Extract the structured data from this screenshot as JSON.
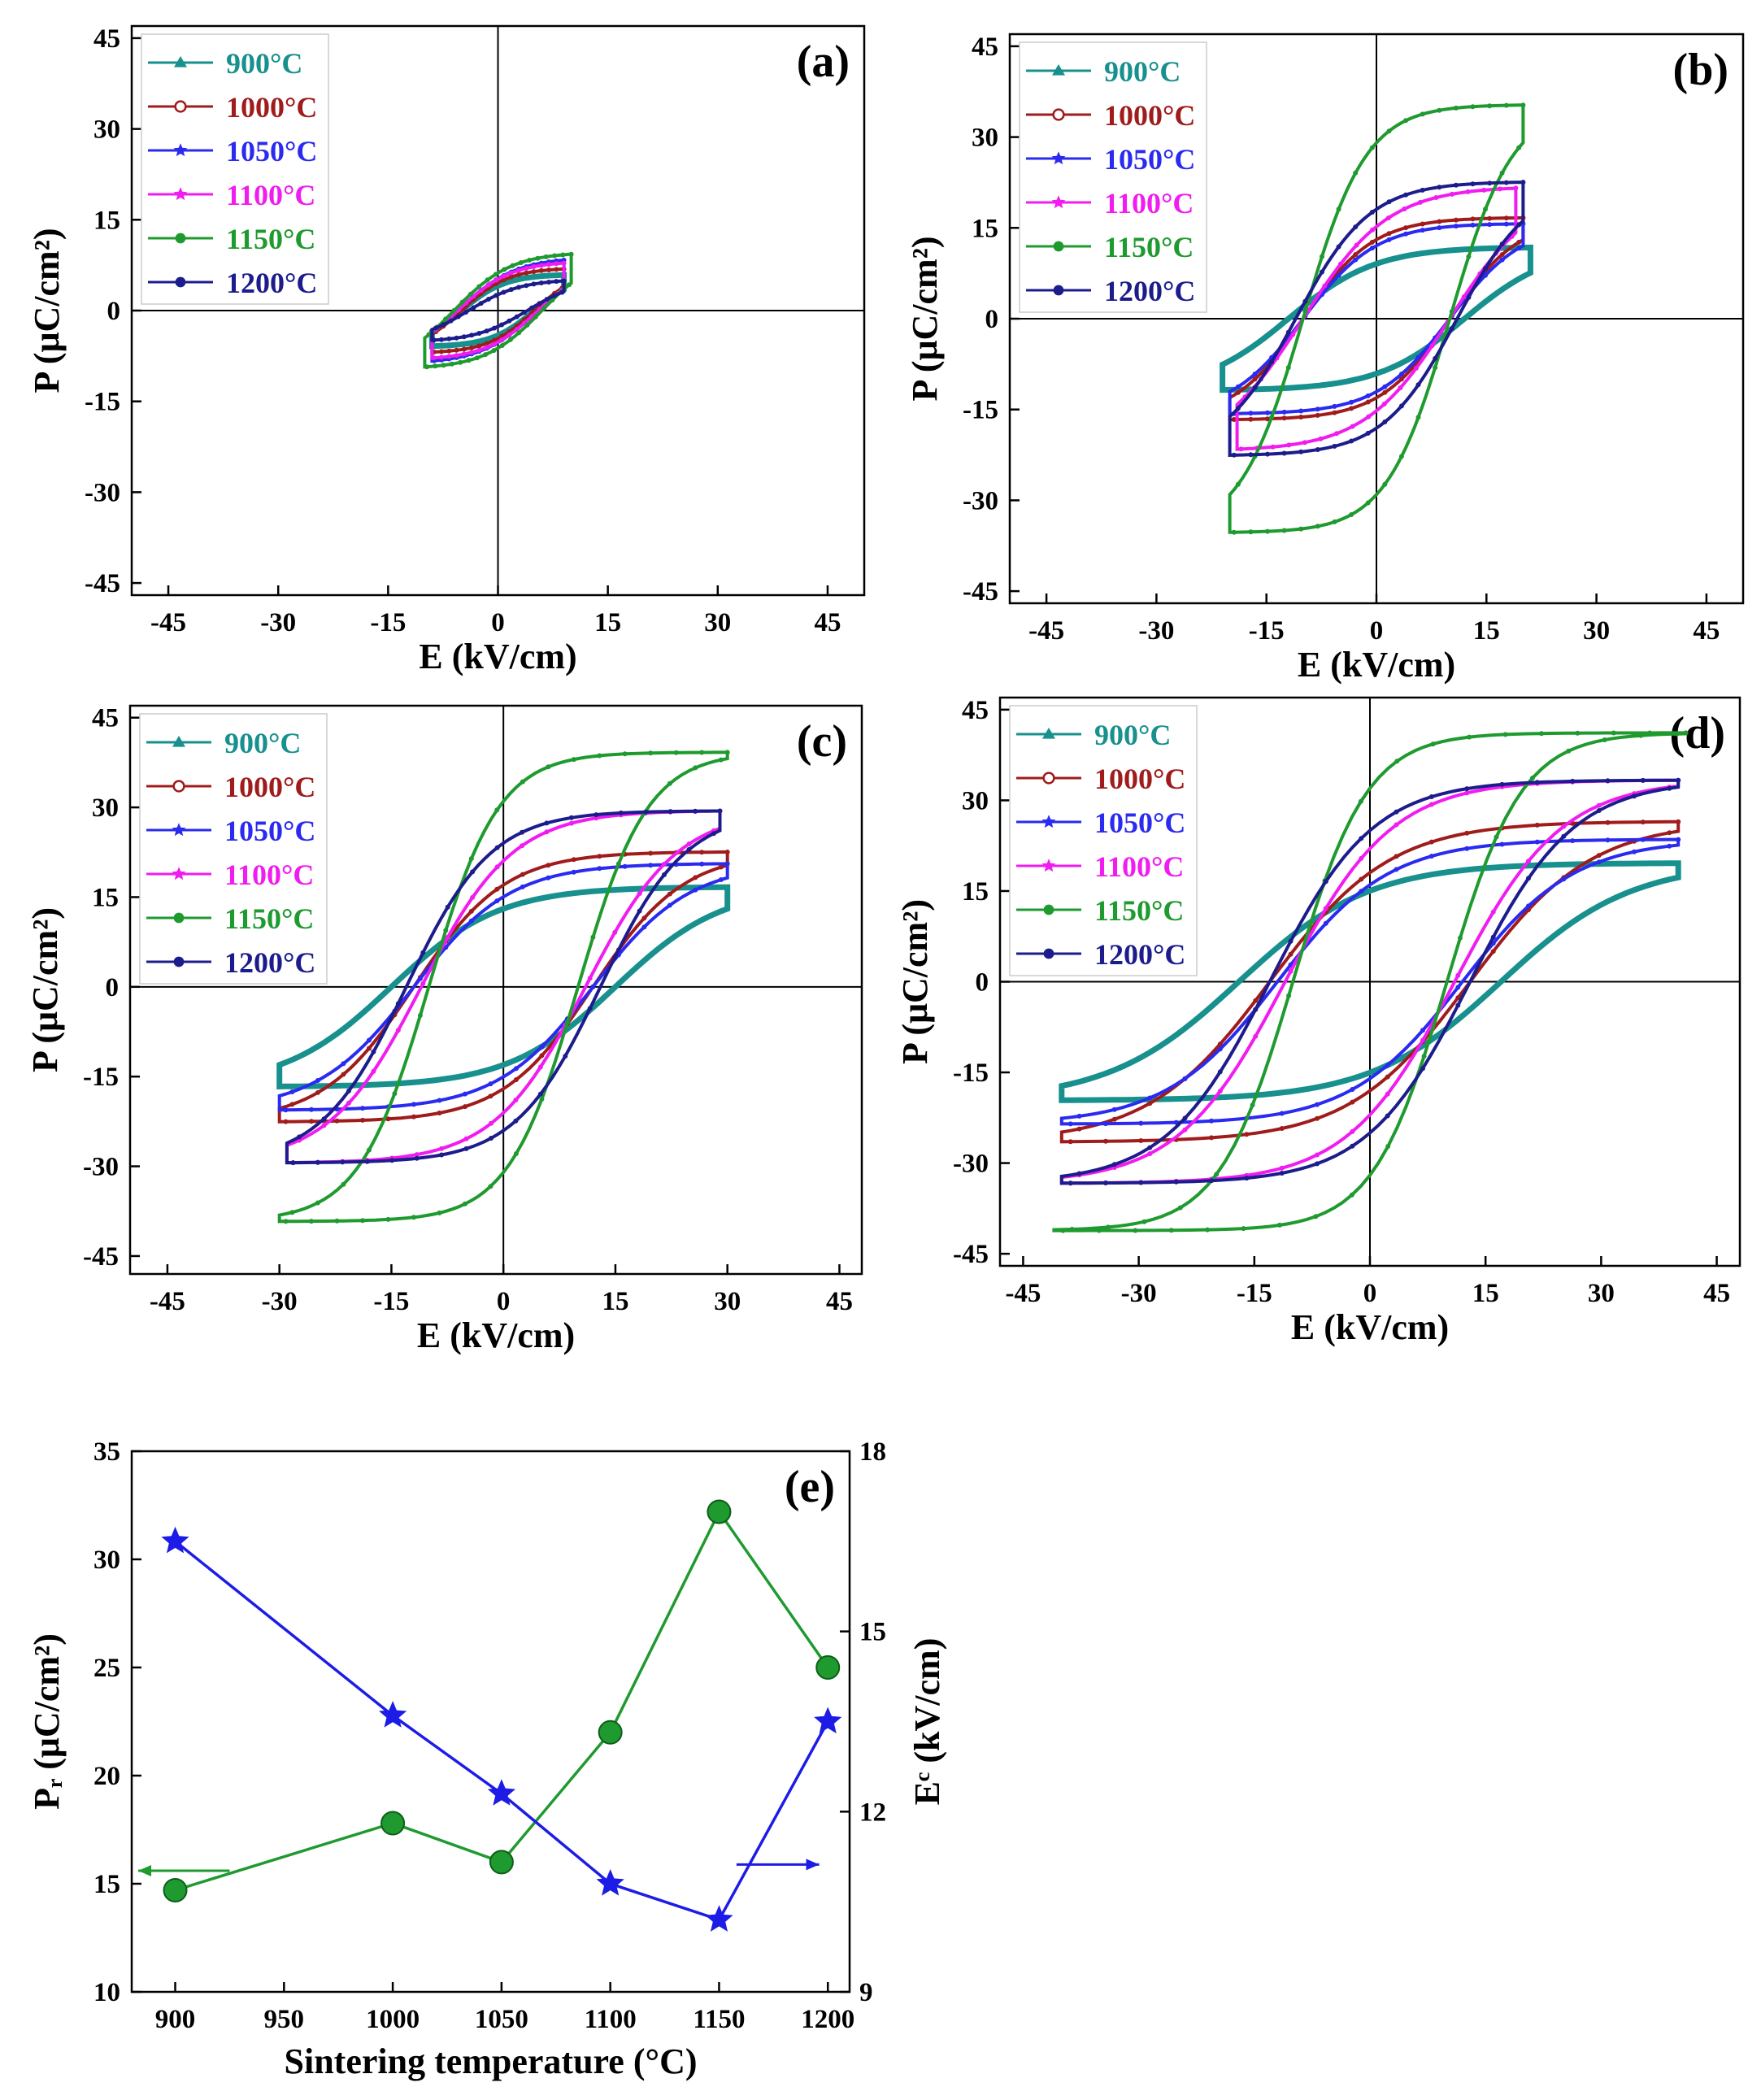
{
  "chart_data": [
    {
      "panel": "(a)",
      "type": "line",
      "xlabel": "E (kV/cm)",
      "ylabel": "P (μC/cm²)",
      "xlim": [
        -50,
        50
      ],
      "ylim": [
        -47,
        47
      ],
      "xticks": [
        "-45",
        "-30",
        "-15",
        "0",
        "15",
        "30",
        "45"
      ],
      "yticks": [
        "45",
        "30",
        "15",
        "0",
        "-15",
        "-30",
        "-45"
      ],
      "legend": "top-left",
      "series": [
        {
          "name": "900°C",
          "color": "#17908e",
          "marker": "triangle",
          "emax": 9,
          "pmax": 6,
          "pr": 4,
          "ec": 5
        },
        {
          "name": "1000°C",
          "color": "#a01c1c",
          "marker": "circle-open",
          "emax": 9,
          "pmax": 7,
          "pr": 4.5,
          "ec": 5
        },
        {
          "name": "1050°C",
          "color": "#2a2af0",
          "marker": "star",
          "emax": 9,
          "pmax": 8.5,
          "pr": 5,
          "ec": 5.5
        },
        {
          "name": "1100°C",
          "color": "#f01cf0",
          "marker": "star",
          "emax": 9,
          "pmax": 8,
          "pr": 5,
          "ec": 5.5
        },
        {
          "name": "1150°C",
          "color": "#1f9a2f",
          "marker": "circle",
          "emax": 10,
          "pmax": 9.5,
          "pr": 6,
          "ec": 6
        },
        {
          "name": "1200°C",
          "color": "#1c1c8c",
          "marker": "circle",
          "emax": 9,
          "pmax": 5,
          "pr": 2.5,
          "ec": 4
        }
      ]
    },
    {
      "panel": "(b)",
      "type": "line",
      "xlabel": "E (kV/cm)",
      "ylabel": "P (μC/cm²)",
      "xlim": [
        -50,
        50
      ],
      "ylim": [
        -47,
        47
      ],
      "xticks": [
        "-45",
        "-30",
        "-15",
        "0",
        "15",
        "30",
        "45"
      ],
      "yticks": [
        "45",
        "30",
        "15",
        "0",
        "-15",
        "-30",
        "-45"
      ],
      "legend": "top-left",
      "series": [
        {
          "name": "900°C",
          "color": "#17908e",
          "marker": "triangle",
          "emax": 21,
          "pmax": 12,
          "pr": 9,
          "ec": 12
        },
        {
          "name": "1000°C",
          "color": "#a01c1c",
          "marker": "circle-open",
          "emax": 20,
          "pmax": 17,
          "pr": 13,
          "ec": 10
        },
        {
          "name": "1050°C",
          "color": "#2a2af0",
          "marker": "star",
          "emax": 20,
          "pmax": 16,
          "pr": 12,
          "ec": 10
        },
        {
          "name": "1100°C",
          "color": "#f01cf0",
          "marker": "star",
          "emax": 19,
          "pmax": 22,
          "pr": 15,
          "ec": 10
        },
        {
          "name": "1150°C",
          "color": "#1f9a2f",
          "marker": "circle",
          "emax": 20,
          "pmax": 36,
          "pr": 29,
          "ec": 10
        },
        {
          "name": "1200°C",
          "color": "#1c1c8c",
          "marker": "circle",
          "emax": 20,
          "pmax": 23,
          "pr": 18,
          "ec": 11
        }
      ]
    },
    {
      "panel": "(c)",
      "type": "line",
      "xlabel": "E (kV/cm)",
      "ylabel": "P (μC/cm²)",
      "xlim": [
        -50,
        48
      ],
      "ylim": [
        -48,
        47
      ],
      "xticks": [
        "-45",
        "-30",
        "-15",
        "0",
        "15",
        "30",
        "45"
      ],
      "yticks": [
        "45",
        "30",
        "15",
        "0",
        "-15",
        "-30",
        "-45"
      ],
      "legend": "top-left",
      "series": [
        {
          "name": "900°C",
          "color": "#17908e",
          "marker": "triangle",
          "emax": 30,
          "pmax": 17,
          "pr": 13,
          "ec": 15
        },
        {
          "name": "1000°C",
          "color": "#a01c1c",
          "marker": "circle-open",
          "emax": 30,
          "pmax": 23,
          "pr": 17,
          "ec": 12
        },
        {
          "name": "1050°C",
          "color": "#2a2af0",
          "marker": "star",
          "emax": 30,
          "pmax": 21,
          "pr": 15,
          "ec": 12
        },
        {
          "name": "1100°C",
          "color": "#f01cf0",
          "marker": "star",
          "emax": 29,
          "pmax": 30,
          "pr": 21,
          "ec": 11
        },
        {
          "name": "1150°C",
          "color": "#1f9a2f",
          "marker": "circle",
          "emax": 30,
          "pmax": 40,
          "pr": 31,
          "ec": 10
        },
        {
          "name": "1200°C",
          "color": "#1c1c8c",
          "marker": "circle",
          "emax": 29,
          "pmax": 30,
          "pr": 24,
          "ec": 13
        }
      ]
    },
    {
      "panel": "(d)",
      "type": "line",
      "xlabel": "E (kV/cm)",
      "ylabel": "P (μC/cm²)",
      "xlim": [
        -48,
        48
      ],
      "ylim": [
        -47,
        47
      ],
      "xticks": [
        "-45",
        "-30",
        "-15",
        "0",
        "15",
        "30",
        "45"
      ],
      "yticks": [
        "45",
        "30",
        "15",
        "0",
        "-15",
        "-30",
        "-45"
      ],
      "legend": "top-left",
      "series": [
        {
          "name": "900°C",
          "color": "#17908e",
          "marker": "triangle",
          "emax": 40,
          "pmax": 20,
          "pr": 15,
          "ec": 17
        },
        {
          "name": "1000°C",
          "color": "#a01c1c",
          "marker": "circle-open",
          "emax": 40,
          "pmax": 27,
          "pr": 18,
          "ec": 13
        },
        {
          "name": "1050°C",
          "color": "#2a2af0",
          "marker": "star",
          "emax": 40,
          "pmax": 24,
          "pr": 16,
          "ec": 12
        },
        {
          "name": "1100°C",
          "color": "#f01cf0",
          "marker": "star",
          "emax": 40,
          "pmax": 34,
          "pr": 22,
          "ec": 11
        },
        {
          "name": "1150°C",
          "color": "#1f9a2f",
          "marker": "circle",
          "emax": 41,
          "pmax": 42,
          "pr": 32,
          "ec": 10
        },
        {
          "name": "1200°C",
          "color": "#1c1c8c",
          "marker": "circle",
          "emax": 40,
          "pmax": 34,
          "pr": 25,
          "ec": 13
        }
      ]
    },
    {
      "panel": "(e)",
      "type": "line",
      "xlabel": "Sintering temperature (°C)",
      "ylabel": "Pᵣ (μC/cm²)",
      "ylabel_right": "Eᶜ (kV/cm)",
      "x": [
        900,
        1000,
        1050,
        1100,
        1150,
        1200
      ],
      "xlim": [
        880,
        1210
      ],
      "ylim_left": [
        10,
        35
      ],
      "ylim_right": [
        9,
        18
      ],
      "xticks": [
        "900",
        "950",
        "1000",
        "1050",
        "1100",
        "1150",
        "1200"
      ],
      "yticks_left": [
        "35",
        "30",
        "25",
        "20",
        "15",
        "10"
      ],
      "yticks_right": [
        "18",
        "15",
        "12",
        "9"
      ],
      "series": [
        {
          "axis": "left",
          "color": "#1f9a2f",
          "marker": "circle",
          "values": [
            14.7,
            17.8,
            16.0,
            22.0,
            32.2,
            25.0
          ]
        },
        {
          "axis": "right",
          "color": "#1c1ce6",
          "marker": "star",
          "values": [
            16.5,
            13.6,
            12.3,
            10.8,
            10.2,
            13.5
          ]
        }
      ]
    }
  ]
}
